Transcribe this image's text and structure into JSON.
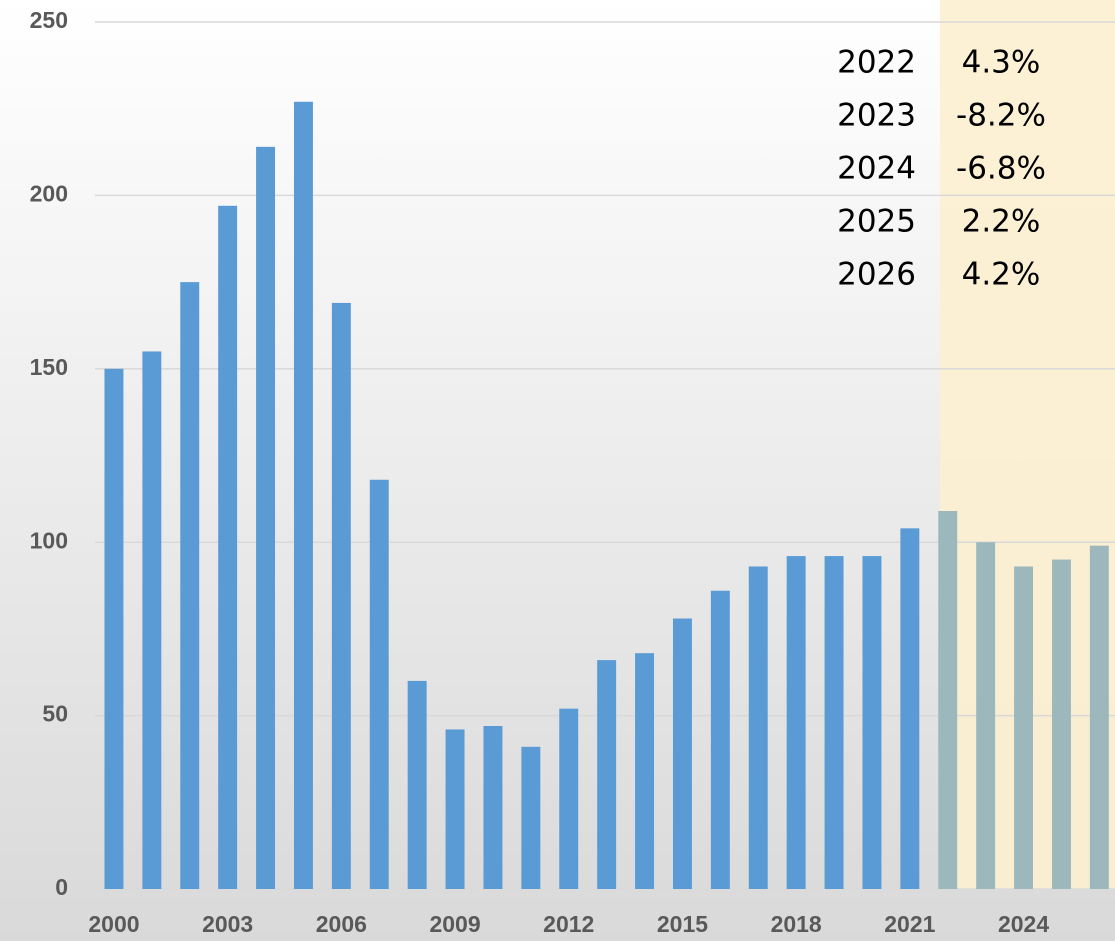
{
  "chart_data": {
    "type": "bar",
    "categories": [
      "2000",
      null,
      null,
      "2003",
      null,
      null,
      "2006",
      null,
      null,
      "2009",
      null,
      null,
      "2012",
      null,
      null,
      "2015",
      null,
      null,
      "2018",
      null,
      null,
      "2021",
      null,
      null,
      "2024",
      null,
      null
    ],
    "values": [
      150,
      155,
      175,
      197,
      214,
      227,
      169,
      118,
      60,
      46,
      47,
      41,
      52,
      66,
      68,
      78,
      86,
      93,
      96,
      96,
      96,
      104,
      109,
      100,
      93,
      95,
      99
    ],
    "colors": [
      "#5b9bd5",
      "#5b9bd5",
      "#5b9bd5",
      "#5b9bd5",
      "#5b9bd5",
      "#5b9bd5",
      "#5b9bd5",
      "#5b9bd5",
      "#5b9bd5",
      "#5b9bd5",
      "#5b9bd5",
      "#5b9bd5",
      "#5b9bd5",
      "#5b9bd5",
      "#5b9bd5",
      "#5b9bd5",
      "#5b9bd5",
      "#5b9bd5",
      "#5b9bd5",
      "#5b9bd5",
      "#5b9bd5",
      "#5b9bd5",
      "#9db8bc",
      "#9db8bc",
      "#9db8bc",
      "#9db8bc",
      "#9db8bc"
    ],
    "ylim": [
      0,
      250
    ],
    "yticks": [
      0,
      50,
      100,
      150,
      200,
      250
    ],
    "grid": true,
    "annotations": [
      {
        "year": "2022",
        "change": "4.3%"
      },
      {
        "year": "2023",
        "change": "-8.2%"
      },
      {
        "year": "2024",
        "change": "-6.8%"
      },
      {
        "year": "2025",
        "change": "2.2%"
      },
      {
        "year": "2026",
        "change": "4.2%"
      }
    ]
  }
}
